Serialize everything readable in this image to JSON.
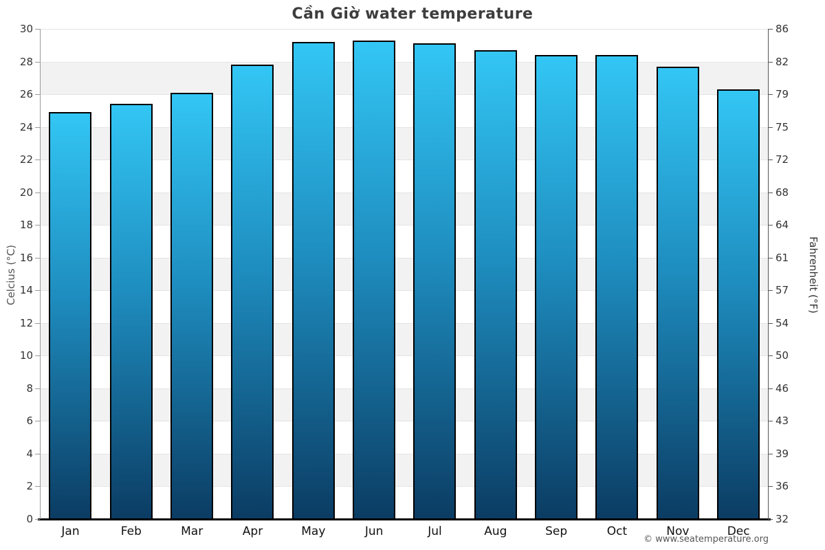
{
  "title": "Cần Giờ water temperature",
  "footer": "© www.seatemperature.org",
  "y_axis_left_label": "Celcius (°C)",
  "y_axis_right_label": "Fahrenheit (°F)",
  "chart_data": {
    "type": "bar",
    "title": "Cần Giờ water temperature",
    "categories": [
      "Jan",
      "Feb",
      "Mar",
      "Apr",
      "May",
      "Jun",
      "Jul",
      "Aug",
      "Sep",
      "Oct",
      "Nov",
      "Dec"
    ],
    "values": [
      24.9,
      25.4,
      26.1,
      27.8,
      29.2,
      29.3,
      29.1,
      28.7,
      28.4,
      28.4,
      27.7,
      26.3
    ],
    "unit": "°C",
    "xlabel": "",
    "ylabel": "Celcius (°C)",
    "ylabel_right": "Fahrenheit (°F)",
    "ylim": [
      0,
      30
    ],
    "ytick_step": 2,
    "yticks_celsius": [
      0,
      2,
      4,
      6,
      8,
      10,
      12,
      14,
      16,
      18,
      20,
      22,
      24,
      26,
      28,
      30
    ],
    "yticks_fahrenheit": [
      32,
      36,
      39,
      43,
      46,
      50,
      54,
      57,
      61,
      64,
      68,
      72,
      75,
      79,
      82,
      86
    ],
    "grid": "horizontal-bands-alternating",
    "legend_position": "none",
    "colors": {
      "bar_gradient_top": "#33c6f4",
      "bar_gradient_mid": "#1e8dbf",
      "bar_gradient_bottom": "#0b3c63",
      "bar_border": "#000000",
      "band_shaded": "#f2f2f2",
      "band_plain": "#ffffff",
      "gridline": "#e4e4e4",
      "axis_line_left": "#999999",
      "axis_line_right": "#555555",
      "baseline": "#000000",
      "title_color": "#3d3d3d",
      "tick_label_color": "#333333",
      "month_label_color": "#111111",
      "footer_color": "#555555"
    }
  }
}
